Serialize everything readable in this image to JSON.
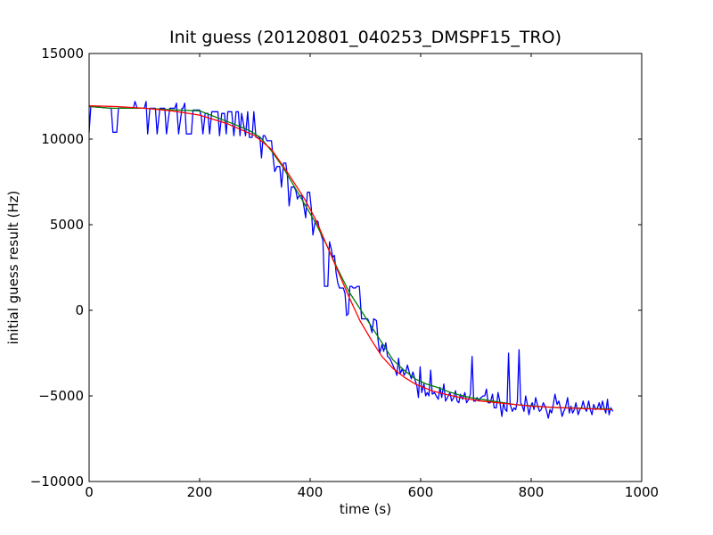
{
  "chart_data": {
    "type": "line",
    "title": "Init guess (20120801_040253_DMSPF15_TRO)",
    "xlabel": "time (s)",
    "ylabel": "initial guess result (Hz)",
    "xlim": [
      0,
      1000
    ],
    "ylim": [
      -10000,
      15000
    ],
    "xticks": [
      0,
      200,
      400,
      600,
      800,
      1000
    ],
    "yticks": [
      -10000,
      -5000,
      0,
      5000,
      10000,
      15000
    ],
    "grid": false,
    "legend": "none",
    "series": [
      {
        "color": "#0000ff",
        "points": [
          [
            0,
            10400
          ],
          [
            3,
            11900
          ],
          [
            40,
            11800
          ],
          [
            43,
            10400
          ],
          [
            50,
            10400
          ],
          [
            53,
            11800
          ],
          [
            80,
            11800
          ],
          [
            83,
            12200
          ],
          [
            87,
            11800
          ],
          [
            100,
            11800
          ],
          [
            103,
            12200
          ],
          [
            106,
            10300
          ],
          [
            110,
            11800
          ],
          [
            120,
            11800
          ],
          [
            123,
            10300
          ],
          [
            128,
            11800
          ],
          [
            137,
            11800
          ],
          [
            140,
            10300
          ],
          [
            146,
            11800
          ],
          [
            155,
            11800
          ],
          [
            158,
            12100
          ],
          [
            162,
            10300
          ],
          [
            168,
            11800
          ],
          [
            170,
            11800
          ],
          [
            173,
            12100
          ],
          [
            176,
            10300
          ],
          [
            185,
            10300
          ],
          [
            188,
            11700
          ],
          [
            200,
            11700
          ],
          [
            203,
            11300
          ],
          [
            206,
            10300
          ],
          [
            210,
            11500
          ],
          [
            215,
            11500
          ],
          [
            218,
            10300
          ],
          [
            222,
            11600
          ],
          [
            233,
            11600
          ],
          [
            236,
            10200
          ],
          [
            240,
            11500
          ],
          [
            245,
            11500
          ],
          [
            248,
            10300
          ],
          [
            251,
            11600
          ],
          [
            258,
            11600
          ],
          [
            262,
            10200
          ],
          [
            266,
            11600
          ],
          [
            270,
            11600
          ],
          [
            273,
            10200
          ],
          [
            276,
            11500
          ],
          [
            283,
            10200
          ],
          [
            287,
            11600
          ],
          [
            290,
            10100
          ],
          [
            295,
            10100
          ],
          [
            298,
            11600
          ],
          [
            302,
            10100
          ],
          [
            309,
            10100
          ],
          [
            312,
            8900
          ],
          [
            315,
            10200
          ],
          [
            318,
            10200
          ],
          [
            322,
            9900
          ],
          [
            330,
            9900
          ],
          [
            333,
            8900
          ],
          [
            336,
            8100
          ],
          [
            340,
            8400
          ],
          [
            345,
            8400
          ],
          [
            348,
            7200
          ],
          [
            352,
            8600
          ],
          [
            356,
            8600
          ],
          [
            359,
            7800
          ],
          [
            362,
            6100
          ],
          [
            366,
            7200
          ],
          [
            371,
            7200
          ],
          [
            374,
            7000
          ],
          [
            377,
            6500
          ],
          [
            380,
            6700
          ],
          [
            385,
            6700
          ],
          [
            388,
            6200
          ],
          [
            392,
            5400
          ],
          [
            395,
            6900
          ],
          [
            399,
            6900
          ],
          [
            402,
            6000
          ],
          [
            405,
            4400
          ],
          [
            409,
            5200
          ],
          [
            414,
            5200
          ],
          [
            417,
            4700
          ],
          [
            420,
            4400
          ],
          [
            423,
            4100
          ],
          [
            426,
            1400
          ],
          [
            432,
            1400
          ],
          [
            435,
            4000
          ],
          [
            438,
            3600
          ],
          [
            441,
            3100
          ],
          [
            444,
            3200
          ],
          [
            447,
            2200
          ],
          [
            450,
            1600
          ],
          [
            453,
            1300
          ],
          [
            460,
            1300
          ],
          [
            463,
            1000
          ],
          [
            466,
            -300
          ],
          [
            469,
            -200
          ],
          [
            472,
            1400
          ],
          [
            475,
            1400
          ],
          [
            478,
            1300
          ],
          [
            482,
            1300
          ],
          [
            485,
            1400
          ],
          [
            489,
            1400
          ],
          [
            493,
            -500
          ],
          [
            504,
            -500
          ],
          [
            508,
            -800
          ],
          [
            512,
            -1300
          ],
          [
            515,
            -500
          ],
          [
            520,
            -600
          ],
          [
            523,
            -1800
          ],
          [
            526,
            -2500
          ],
          [
            530,
            -2000
          ],
          [
            533,
            -2400
          ],
          [
            537,
            -1900
          ],
          [
            540,
            -2700
          ],
          [
            544,
            -2800
          ],
          [
            547,
            -3000
          ],
          [
            551,
            -3300
          ],
          [
            554,
            -3500
          ],
          [
            557,
            -3800
          ],
          [
            560,
            -2800
          ],
          [
            563,
            -3700
          ],
          [
            567,
            -3400
          ],
          [
            570,
            -3800
          ],
          [
            573,
            -3600
          ],
          [
            576,
            -3200
          ],
          [
            580,
            -3700
          ],
          [
            583,
            -4000
          ],
          [
            586,
            -3600
          ],
          [
            590,
            -4100
          ],
          [
            593,
            -4400
          ],
          [
            596,
            -5100
          ],
          [
            599,
            -3300
          ],
          [
            602,
            -4800
          ],
          [
            606,
            -4300
          ],
          [
            609,
            -5000
          ],
          [
            612,
            -4800
          ],
          [
            615,
            -5000
          ],
          [
            618,
            -3500
          ],
          [
            621,
            -4900
          ],
          [
            625,
            -4800
          ],
          [
            628,
            -5000
          ],
          [
            632,
            -5200
          ],
          [
            635,
            -4500
          ],
          [
            638,
            -5100
          ],
          [
            642,
            -4300
          ],
          [
            645,
            -5300
          ],
          [
            650,
            -5000
          ],
          [
            653,
            -4800
          ],
          [
            656,
            -5300
          ],
          [
            660,
            -5100
          ],
          [
            663,
            -4700
          ],
          [
            666,
            -5300
          ],
          [
            669,
            -5400
          ],
          [
            672,
            -4900
          ],
          [
            676,
            -5200
          ],
          [
            680,
            -4800
          ],
          [
            683,
            -5400
          ],
          [
            687,
            -5200
          ],
          [
            690,
            -4900
          ],
          [
            693,
            -2700
          ],
          [
            696,
            -5300
          ],
          [
            699,
            -5300
          ],
          [
            702,
            -5100
          ],
          [
            705,
            -5300
          ],
          [
            709,
            -5100
          ],
          [
            713,
            -5000
          ],
          [
            716,
            -5000
          ],
          [
            719,
            -4600
          ],
          [
            722,
            -5400
          ],
          [
            726,
            -5400
          ],
          [
            730,
            -4900
          ],
          [
            733,
            -5700
          ],
          [
            737,
            -5700
          ],
          [
            740,
            -4800
          ],
          [
            743,
            -5300
          ],
          [
            747,
            -6200
          ],
          [
            750,
            -5400
          ],
          [
            753,
            -5800
          ],
          [
            756,
            -5900
          ],
          [
            759,
            -2500
          ],
          [
            762,
            -5500
          ],
          [
            766,
            -5900
          ],
          [
            769,
            -5700
          ],
          [
            772,
            -5800
          ],
          [
            775,
            -5300
          ],
          [
            778,
            -2300
          ],
          [
            781,
            -5400
          ],
          [
            784,
            -5600
          ],
          [
            787,
            -5900
          ],
          [
            790,
            -5000
          ],
          [
            793,
            -5500
          ],
          [
            796,
            -6100
          ],
          [
            799,
            -5600
          ],
          [
            802,
            -5400
          ],
          [
            805,
            -5800
          ],
          [
            808,
            -5100
          ],
          [
            812,
            -5600
          ],
          [
            815,
            -5900
          ],
          [
            818,
            -5800
          ],
          [
            822,
            -5400
          ],
          [
            825,
            -5600
          ],
          [
            828,
            -5900
          ],
          [
            831,
            -6300
          ],
          [
            834,
            -5800
          ],
          [
            837,
            -6000
          ],
          [
            840,
            -5500
          ],
          [
            843,
            -4900
          ],
          [
            847,
            -5500
          ],
          [
            850,
            -5300
          ],
          [
            853,
            -5700
          ],
          [
            856,
            -6200
          ],
          [
            859,
            -5900
          ],
          [
            862,
            -5700
          ],
          [
            866,
            -5100
          ],
          [
            869,
            -6000
          ],
          [
            872,
            -5600
          ],
          [
            875,
            -6000
          ],
          [
            878,
            -5800
          ],
          [
            881,
            -5400
          ],
          [
            885,
            -6100
          ],
          [
            888,
            -5800
          ],
          [
            891,
            -5700
          ],
          [
            894,
            -5300
          ],
          [
            897,
            -5700
          ],
          [
            900,
            -5900
          ],
          [
            904,
            -5300
          ],
          [
            907,
            -5800
          ],
          [
            910,
            -6100
          ],
          [
            913,
            -5500
          ],
          [
            917,
            -5800
          ],
          [
            920,
            -5700
          ],
          [
            923,
            -5400
          ],
          [
            926,
            -5800
          ],
          [
            929,
            -5300
          ],
          [
            932,
            -5700
          ],
          [
            935,
            -6000
          ],
          [
            938,
            -5200
          ],
          [
            941,
            -6100
          ],
          [
            944,
            -5700
          ],
          [
            948,
            -5900
          ]
        ]
      },
      {
        "color": "#008000",
        "points": [
          [
            0,
            11900
          ],
          [
            40,
            11800
          ],
          [
            100,
            11800
          ],
          [
            160,
            11700
          ],
          [
            200,
            11650
          ],
          [
            220,
            11400
          ],
          [
            260,
            10900
          ],
          [
            290,
            10500
          ],
          [
            310,
            10100
          ],
          [
            330,
            9300
          ],
          [
            350,
            8400
          ],
          [
            370,
            7300
          ],
          [
            390,
            6200
          ],
          [
            410,
            5100
          ],
          [
            430,
            3800
          ],
          [
            450,
            2400
          ],
          [
            470,
            1100
          ],
          [
            490,
            100
          ],
          [
            510,
            -900
          ],
          [
            530,
            -1900
          ],
          [
            550,
            -2900
          ],
          [
            570,
            -3500
          ],
          [
            590,
            -4000
          ],
          [
            610,
            -4300
          ],
          [
            630,
            -4500
          ],
          [
            650,
            -4750
          ],
          [
            670,
            -4950
          ],
          [
            690,
            -5100
          ],
          [
            710,
            -5200
          ],
          [
            730,
            -5300
          ],
          [
            750,
            -5400
          ],
          [
            770,
            -5500
          ],
          [
            790,
            -5550
          ],
          [
            810,
            -5600
          ],
          [
            830,
            -5650
          ],
          [
            850,
            -5700
          ],
          [
            870,
            -5700
          ],
          [
            890,
            -5720
          ],
          [
            910,
            -5750
          ],
          [
            930,
            -5750
          ],
          [
            945,
            -5770
          ]
        ]
      },
      {
        "color": "#ff0000",
        "points": [
          [
            0,
            11950
          ],
          [
            50,
            11900
          ],
          [
            100,
            11800
          ],
          [
            150,
            11650
          ],
          [
            200,
            11400
          ],
          [
            250,
            10900
          ],
          [
            300,
            10200
          ],
          [
            330,
            9400
          ],
          [
            360,
            8000
          ],
          [
            390,
            6500
          ],
          [
            410,
            5300
          ],
          [
            430,
            3800
          ],
          [
            450,
            2300
          ],
          [
            470,
            800
          ],
          [
            490,
            -600
          ],
          [
            510,
            -1700
          ],
          [
            530,
            -2700
          ],
          [
            550,
            -3400
          ],
          [
            570,
            -3900
          ],
          [
            590,
            -4300
          ],
          [
            620,
            -4700
          ],
          [
            650,
            -4950
          ],
          [
            680,
            -5150
          ],
          [
            710,
            -5300
          ],
          [
            740,
            -5400
          ],
          [
            770,
            -5500
          ],
          [
            800,
            -5600
          ],
          [
            830,
            -5650
          ],
          [
            860,
            -5700
          ],
          [
            900,
            -5750
          ],
          [
            945,
            -5800
          ]
        ]
      }
    ]
  }
}
